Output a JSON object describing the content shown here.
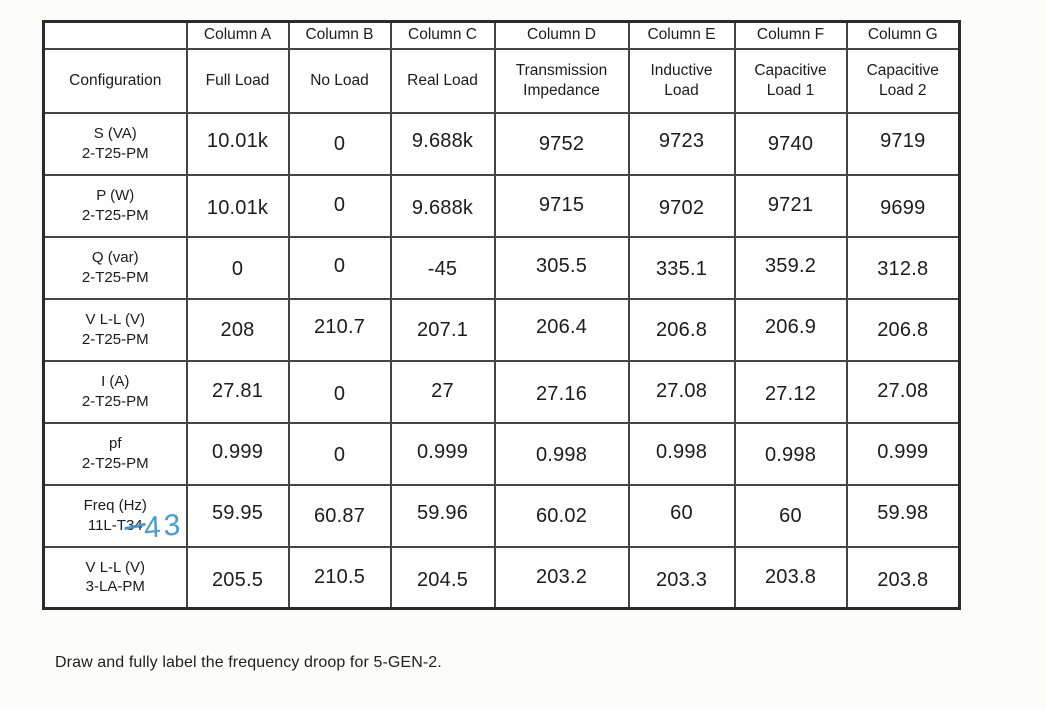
{
  "table": {
    "header_row": {
      "corner": "",
      "columns": [
        "Column A",
        "Column B",
        "Column C",
        "Column D",
        "Column E",
        "Column F",
        "Column G"
      ]
    },
    "subheader_row": {
      "config_label": "Configuration",
      "labels": [
        "Full Load",
        "No Load",
        "Real Load",
        "Transmission Impedance",
        "Inductive Load",
        "Capacitive Load 1",
        "Capacitive Load 2"
      ]
    },
    "rows": [
      {
        "label1": "S (VA)",
        "label2": "2-T25-PM",
        "values": [
          "10.01k",
          "0",
          "9.688k",
          "9752",
          "9723",
          "9740",
          "9719"
        ]
      },
      {
        "label1": "P (W)",
        "label2": "2-T25-PM",
        "values": [
          "10.01k",
          "0",
          "9.688k",
          "9715",
          "9702",
          "9721",
          "9699"
        ]
      },
      {
        "label1": "Q (var)",
        "label2": "2-T25-PM",
        "values": [
          "0",
          "0",
          "-45",
          "305.5",
          "335.1",
          "359.2",
          "312.8"
        ]
      },
      {
        "label1": "V L-L (V)",
        "label2": "2-T25-PM",
        "values": [
          "208",
          "210.7",
          "207.1",
          "206.4",
          "206.8",
          "206.9",
          "206.8"
        ]
      },
      {
        "label1": "I (A)",
        "label2": "2-T25-PM",
        "values": [
          "27.81",
          "0",
          "27",
          "27.16",
          "27.08",
          "27.12",
          "27.08"
        ]
      },
      {
        "label1": "pf",
        "label2": "2-T25-PM",
        "values": [
          "0.999",
          "0",
          "0.999",
          "0.998",
          "0.998",
          "0.998",
          "0.999"
        ]
      },
      {
        "label1": "Freq (Hz)",
        "label2_prefix": "11L-T",
        "label2_struck": "34",
        "handwritten_correction": "43",
        "values": [
          "59.95",
          "60.87",
          "59.96",
          "60.02",
          "60",
          "60",
          "59.98"
        ]
      },
      {
        "label1": "V L-L (V)",
        "label2": "3-LA-PM",
        "values": [
          "205.5",
          "210.5",
          "204.5",
          "203.2",
          "203.3",
          "203.8",
          "203.8"
        ]
      }
    ],
    "annotation_color": "#3d92cc"
  },
  "caption": "Draw and fully label the frequency droop for 5-GEN-2."
}
